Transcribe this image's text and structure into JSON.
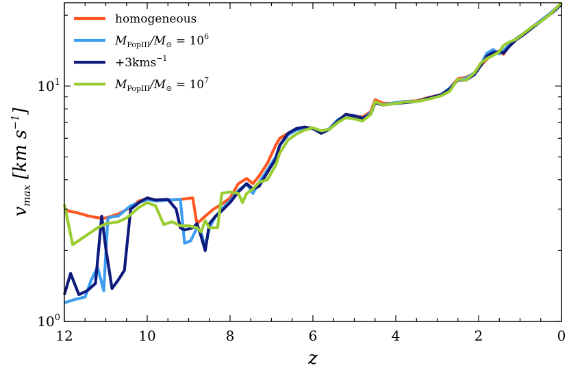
{
  "chart_data": {
    "type": "line",
    "xlabel": "z",
    "ylabel": "v_max [km s^-1]",
    "ylabel_display": {
      "var": "v",
      "sub": "max",
      "unit": "[km s",
      "exp": "−1",
      "close": "]"
    },
    "xlim": [
      12,
      0
    ],
    "ylim": [
      1.0,
      22.6
    ],
    "yscale": "log",
    "x_ticks": [
      {
        "value": 12,
        "label": "12"
      },
      {
        "value": 10,
        "label": "10"
      },
      {
        "value": 8,
        "label": "8"
      },
      {
        "value": 6,
        "label": "6"
      },
      {
        "value": 4,
        "label": "4"
      },
      {
        "value": 2,
        "label": "2"
      },
      {
        "value": 0,
        "label": "0"
      }
    ],
    "y_ticks": [
      {
        "value": 1,
        "label_base": "10",
        "label_exp": "0"
      },
      {
        "value": 10,
        "label_base": "10",
        "label_exp": "1"
      }
    ],
    "legend_position": "top-left",
    "series": [
      {
        "name": "homogeneous",
        "legend": "homogeneous",
        "color": "#ff5722",
        "x": [
          12.0,
          11.7,
          11.4,
          11.2,
          11.0,
          10.7,
          10.4,
          10.2,
          10.0,
          9.8,
          9.5,
          9.2,
          8.9,
          8.8,
          8.6,
          8.4,
          8.2,
          8.0,
          7.8,
          7.6,
          7.45,
          7.3,
          7.1,
          6.9,
          6.8,
          6.6,
          6.4,
          6.2,
          6.0,
          5.8,
          5.6,
          5.4,
          5.2,
          5.0,
          4.8,
          4.6,
          4.5,
          4.3,
          4.1,
          3.8,
          3.5,
          3.2,
          2.9,
          2.7,
          2.5,
          2.3,
          2.1,
          1.95,
          1.8,
          1.65,
          1.5,
          1.4,
          1.25,
          1.1,
          0.9,
          0.7,
          0.5,
          0.3,
          0.15,
          0.0
        ],
        "y": [
          2.97,
          2.9,
          2.8,
          2.76,
          2.75,
          2.86,
          3.05,
          3.25,
          3.32,
          3.25,
          3.28,
          3.3,
          3.35,
          2.6,
          2.8,
          3.0,
          3.15,
          3.35,
          3.85,
          4.05,
          3.85,
          4.15,
          4.7,
          5.6,
          6.0,
          6.3,
          6.5,
          6.6,
          6.6,
          6.4,
          6.6,
          7.2,
          7.5,
          7.5,
          7.4,
          7.8,
          8.75,
          8.45,
          8.45,
          8.6,
          8.65,
          8.95,
          9.2,
          9.8,
          10.75,
          10.9,
          11.35,
          12.2,
          13.0,
          13.7,
          14.1,
          13.65,
          15.0,
          15.9,
          16.8,
          17.9,
          19.0,
          20.2,
          21.3,
          22.5
        ]
      },
      {
        "name": "M_PopIII/M_sun = 10^6",
        "legend_parts": {
          "pre": "M",
          "sub": "PopIII",
          "mid": "/M",
          "sub2": "⊙",
          "eq": " = 10",
          "exp": "6"
        },
        "color": "#3d9df0",
        "x": [
          12.0,
          11.75,
          11.5,
          11.35,
          11.2,
          11.05,
          10.95,
          10.85,
          10.7,
          10.55,
          10.4,
          10.2,
          10.0,
          9.8,
          9.5,
          9.2,
          9.1,
          8.95,
          8.8,
          8.7,
          8.6,
          8.5,
          8.35,
          8.2,
          8.0,
          7.8,
          7.6,
          7.45,
          7.3,
          7.1,
          6.9,
          6.8,
          6.6,
          6.4,
          6.2,
          6.0,
          5.8,
          5.6,
          5.4,
          5.2,
          5.0,
          4.8,
          4.6,
          4.5,
          4.3,
          4.1,
          3.8,
          3.5,
          3.2,
          2.9,
          2.7,
          2.5,
          2.3,
          2.1,
          1.95,
          1.8,
          1.65,
          1.5,
          1.4,
          1.25,
          1.1,
          0.9,
          0.7,
          0.5,
          0.3,
          0.15,
          0.0
        ],
        "y": [
          1.2,
          1.24,
          1.27,
          1.5,
          1.7,
          1.35,
          2.75,
          2.78,
          2.8,
          2.95,
          3.1,
          3.2,
          3.3,
          3.25,
          3.28,
          3.3,
          2.15,
          2.2,
          2.5,
          2.4,
          2.05,
          2.5,
          2.8,
          3.0,
          3.25,
          3.6,
          3.85,
          3.5,
          3.9,
          4.4,
          5.0,
          5.6,
          6.2,
          6.5,
          6.6,
          6.6,
          6.35,
          6.6,
          7.2,
          7.5,
          7.5,
          7.3,
          7.7,
          8.5,
          8.35,
          8.45,
          8.6,
          8.6,
          8.9,
          9.2,
          9.8,
          10.6,
          10.8,
          11.4,
          12.3,
          13.8,
          14.3,
          13.7,
          14.2,
          15.0,
          15.9,
          16.8,
          17.9,
          19.0,
          20.2,
          21.3,
          22.5
        ]
      },
      {
        "name": "+3kms^-1",
        "legend_parts": {
          "pre": "+3kms",
          "exp": "−1"
        },
        "color": "#0d1a7c",
        "x": [
          12.0,
          11.85,
          11.65,
          11.45,
          11.25,
          11.1,
          11.0,
          10.85,
          10.7,
          10.55,
          10.4,
          10.2,
          10.0,
          9.8,
          9.5,
          9.3,
          9.2,
          9.1,
          8.9,
          8.8,
          8.7,
          8.6,
          8.5,
          8.35,
          8.2,
          8.0,
          7.8,
          7.6,
          7.45,
          7.3,
          7.1,
          6.9,
          6.8,
          6.6,
          6.4,
          6.2,
          6.0,
          5.8,
          5.6,
          5.4,
          5.2,
          5.0,
          4.8,
          4.6,
          4.5,
          4.3,
          4.1,
          3.8,
          3.5,
          3.2,
          2.9,
          2.7,
          2.5,
          2.3,
          2.1,
          1.95,
          1.8,
          1.65,
          1.5,
          1.4,
          1.25,
          1.1,
          0.9,
          0.7,
          0.5,
          0.3,
          0.15,
          0.0
        ],
        "y": [
          1.3,
          1.6,
          1.3,
          1.35,
          1.45,
          2.8,
          2.05,
          1.38,
          1.5,
          1.65,
          3.0,
          3.2,
          3.35,
          3.28,
          3.3,
          3.0,
          2.5,
          2.45,
          2.5,
          2.6,
          2.3,
          2.0,
          2.6,
          2.8,
          2.95,
          3.2,
          3.55,
          3.85,
          3.65,
          3.75,
          4.3,
          4.9,
          5.6,
          6.3,
          6.6,
          6.7,
          6.6,
          6.3,
          6.55,
          7.1,
          7.6,
          7.45,
          7.3,
          7.6,
          8.5,
          8.3,
          8.4,
          8.5,
          8.6,
          8.9,
          9.2,
          9.7,
          10.6,
          10.6,
          11.2,
          12.2,
          13.4,
          13.9,
          14.0,
          13.8,
          14.8,
          15.7,
          16.6,
          17.7,
          18.8,
          20.0,
          21.0,
          22.3
        ]
      },
      {
        "name": "M_PopIII/M_sun = 10^7",
        "legend_parts": {
          "pre": "M",
          "sub": "PopIII",
          "mid": "/M",
          "sub2": "⊙",
          "eq": " = 10",
          "exp": "7"
        },
        "color": "#9acd32",
        "x": [
          12.0,
          11.8,
          11.5,
          11.2,
          11.0,
          10.7,
          10.5,
          10.2,
          10.0,
          9.8,
          9.6,
          9.4,
          9.2,
          9.0,
          8.8,
          8.7,
          8.6,
          8.5,
          8.3,
          8.2,
          8.0,
          7.8,
          7.7,
          7.6,
          7.45,
          7.3,
          7.1,
          6.9,
          6.8,
          6.6,
          6.4,
          6.2,
          6.0,
          5.8,
          5.6,
          5.4,
          5.2,
          5.0,
          4.8,
          4.6,
          4.5,
          4.3,
          4.1,
          3.8,
          3.5,
          3.2,
          2.9,
          2.7,
          2.5,
          2.3,
          2.1,
          1.95,
          1.8,
          1.65,
          1.5,
          1.4,
          1.25,
          1.1,
          0.9,
          0.7,
          0.5,
          0.3,
          0.15,
          0.0
        ],
        "y": [
          3.15,
          2.12,
          2.3,
          2.5,
          2.6,
          2.65,
          2.75,
          3.05,
          3.2,
          3.1,
          2.58,
          2.65,
          2.55,
          2.55,
          2.5,
          2.4,
          2.68,
          2.5,
          2.5,
          3.5,
          3.55,
          3.5,
          3.2,
          3.5,
          3.65,
          3.9,
          4.0,
          4.6,
          5.2,
          5.9,
          6.25,
          6.5,
          6.65,
          6.45,
          6.55,
          7.0,
          7.35,
          7.25,
          7.1,
          7.6,
          8.6,
          8.3,
          8.4,
          8.55,
          8.6,
          8.8,
          9.1,
          9.5,
          10.7,
          10.6,
          11.4,
          12.5,
          13.1,
          13.5,
          14.0,
          14.9,
          15.4,
          15.8,
          16.8,
          17.9,
          18.8,
          20.0,
          21.2,
          22.6
        ]
      }
    ]
  }
}
